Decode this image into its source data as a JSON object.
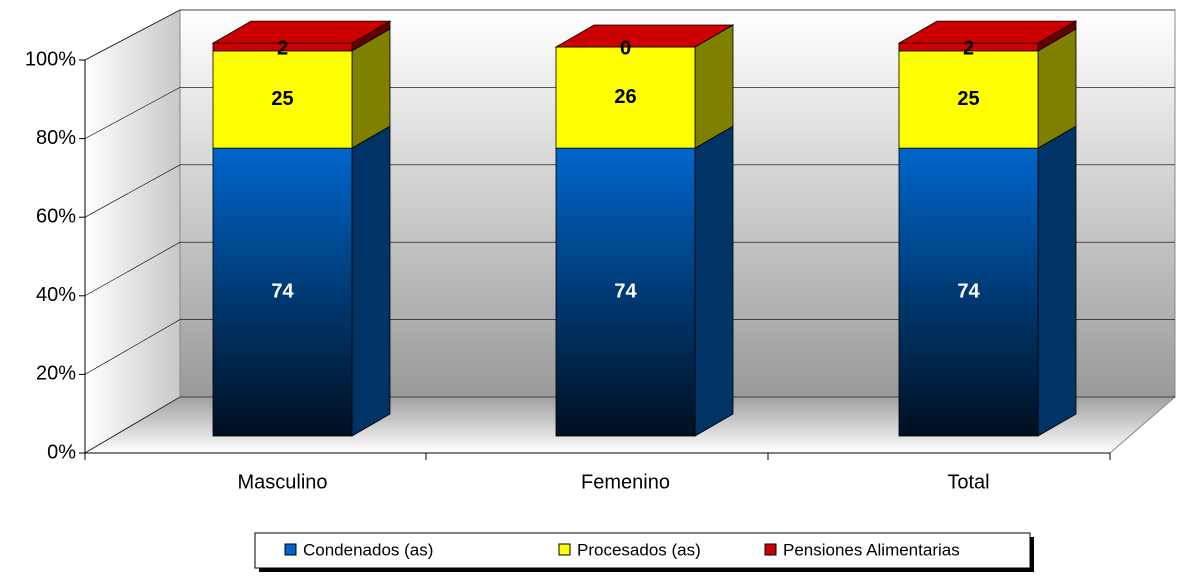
{
  "chart_data": {
    "type": "bar",
    "stacked": true,
    "categories": [
      "Masculino",
      "Femenino",
      "Total"
    ],
    "series": [
      {
        "name": "Condenados (as)",
        "color": "#0066cc",
        "values": [
          74,
          74,
          74
        ]
      },
      {
        "name": "Procesados (as)",
        "color": "#ffff00",
        "values": [
          25,
          26,
          25
        ]
      },
      {
        "name": "Pensiones Alimentarias",
        "color": "#cc0000",
        "values": [
          2,
          0,
          2
        ]
      }
    ],
    "ylim": [
      0,
      100
    ],
    "yticks": [
      {
        "value": 0,
        "label": "0%"
      },
      {
        "value": 20,
        "label": "20%"
      },
      {
        "value": 40,
        "label": "40%"
      },
      {
        "value": 60,
        "label": "60%"
      },
      {
        "value": 80,
        "label": "80%"
      },
      {
        "value": 100,
        "label": "100%"
      }
    ],
    "grid": true,
    "legend": "bottom"
  }
}
